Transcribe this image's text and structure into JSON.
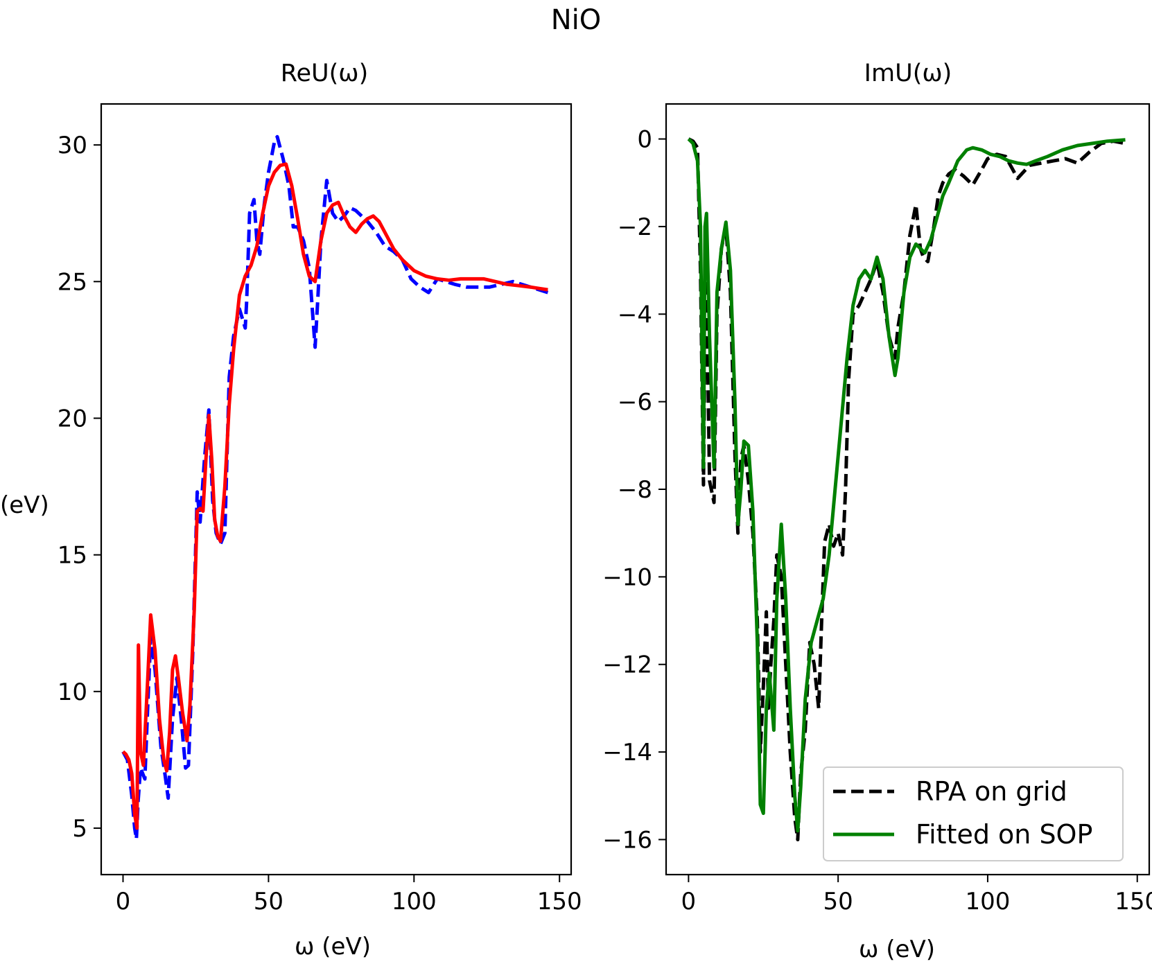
{
  "figure": {
    "title": "NiO"
  },
  "chart_data": [
    {
      "type": "line",
      "title": "ReU(ω)",
      "xlabel": "ω (eV)",
      "ylabel": "(eV)",
      "xlim": [
        -7.5,
        154
      ],
      "ylim": [
        3.3,
        31.5
      ],
      "xticks": [
        0,
        50,
        100,
        150
      ],
      "yticks": [
        5,
        10,
        15,
        20,
        25,
        30
      ],
      "xticklabels": [
        "0",
        "50",
        "100",
        "150"
      ],
      "yticklabels": [
        "5",
        "10",
        "15",
        "20",
        "25",
        "30"
      ],
      "grid": false,
      "series": [
        {
          "color": "#0000ff",
          "dash": "dashed",
          "x": [
            0,
            1.5,
            3,
            4,
            4.6,
            5.2,
            6,
            7.5,
            8.5,
            9.5,
            11,
            13,
            14.5,
            15.5,
            17,
            18.5,
            20,
            21.5,
            22.5,
            24,
            25.5,
            26.5,
            28,
            29.5,
            30.8,
            32,
            33.5,
            35,
            36.5,
            38,
            40,
            42,
            42.5,
            43.5,
            45,
            46,
            47,
            48.5,
            50,
            52,
            53,
            55,
            57,
            58.5,
            60,
            62,
            64,
            66,
            67,
            68,
            70,
            72,
            74,
            76,
            78,
            80,
            82,
            84,
            87,
            90,
            93,
            96,
            99,
            102,
            105,
            108,
            111,
            114,
            118,
            122,
            126,
            130,
            134,
            137,
            140,
            143,
            146
          ],
          "values": [
            7.8,
            7.5,
            6.2,
            5.0,
            4.6,
            6.0,
            7.2,
            6.8,
            9.5,
            12.0,
            10.8,
            8.0,
            6.9,
            6.1,
            9.0,
            10.5,
            9.0,
            7.2,
            7.3,
            11.5,
            17.3,
            16.2,
            18.5,
            20.3,
            17.0,
            15.8,
            15.4,
            15.8,
            21.5,
            23.0,
            24.0,
            23.3,
            24.3,
            27.5,
            28.0,
            26.5,
            26.0,
            27.8,
            29.0,
            30.1,
            30.3,
            29.5,
            28.5,
            27.0,
            27.0,
            26.5,
            25.5,
            22.6,
            24.5,
            26.5,
            28.7,
            27.5,
            27.2,
            27.4,
            27.7,
            27.6,
            27.4,
            27.2,
            26.8,
            26.3,
            26.1,
            25.8,
            25.1,
            24.8,
            24.6,
            25.1,
            25.0,
            24.9,
            24.8,
            24.8,
            24.8,
            24.9,
            25.0,
            24.9,
            24.8,
            24.7,
            24.6
          ]
        },
        {
          "color": "#ff0000",
          "dash": "solid",
          "x": [
            0,
            1,
            2,
            3,
            4,
            4.8,
            5.3,
            6,
            7,
            8.5,
            9.5,
            11,
            12.5,
            14,
            15,
            16,
            17,
            18,
            19,
            20.5,
            22,
            23,
            24.5,
            25.5,
            26.5,
            27.5,
            28.5,
            29.5,
            30.5,
            31.5,
            32.5,
            33.5,
            35,
            36.5,
            38,
            40,
            42,
            44,
            46,
            48,
            50,
            52,
            54,
            56,
            58,
            60,
            62,
            64,
            66,
            68,
            70,
            72,
            74,
            76,
            78,
            80,
            82,
            84,
            86,
            88,
            90,
            93,
            96,
            100,
            104,
            108,
            112,
            116,
            120,
            124,
            128,
            132,
            136,
            140,
            143,
            146
          ],
          "values": [
            7.8,
            7.7,
            7.5,
            7.0,
            5.5,
            5.0,
            11.7,
            7.8,
            7.3,
            10.5,
            12.8,
            11.5,
            9.0,
            7.5,
            7.1,
            8.5,
            10.8,
            11.3,
            10.5,
            9.2,
            8.2,
            9.5,
            13.0,
            16.6,
            16.7,
            16.6,
            18.5,
            20.1,
            18.5,
            16.3,
            15.7,
            15.5,
            17.5,
            20.5,
            22.5,
            24.5,
            25.2,
            25.6,
            26.3,
            27.5,
            28.5,
            29.0,
            29.25,
            29.3,
            28.5,
            27.3,
            26.0,
            25.2,
            25.0,
            26.5,
            27.5,
            27.8,
            27.9,
            27.4,
            27.0,
            26.8,
            27.1,
            27.3,
            27.4,
            27.2,
            26.8,
            26.2,
            25.8,
            25.4,
            25.2,
            25.1,
            25.05,
            25.1,
            25.1,
            25.1,
            25.0,
            24.9,
            24.85,
            24.8,
            24.75,
            24.7
          ]
        }
      ]
    },
    {
      "type": "line",
      "title": "ImU(ω)",
      "xlabel": "ω (eV)",
      "ylabel": "",
      "xlim": [
        -7.5,
        154
      ],
      "ylim": [
        -16.8,
        0.8
      ],
      "xticks": [
        0,
        50,
        100,
        150
      ],
      "yticks": [
        0,
        -2,
        -4,
        -6,
        -8,
        -10,
        -12,
        -14,
        -16
      ],
      "xticklabels": [
        "0",
        "50",
        "100",
        "150"
      ],
      "yticklabels": [
        "0",
        "−2",
        "−4",
        "−6",
        "−8",
        "−10",
        "−12",
        "−14",
        "−16"
      ],
      "grid": false,
      "legend": "lower-right",
      "series": [
        {
          "name": "RPA on grid",
          "color": "#000000",
          "dash": "dashed",
          "x": [
            0,
            1.5,
            3,
            4,
            5,
            5.5,
            6,
            7,
            8.5,
            9.5,
            11,
            12.5,
            14,
            15.5,
            16.5,
            17.5,
            18.5,
            20,
            21.5,
            23,
            24,
            25,
            26,
            26.7,
            27.5,
            28.5,
            29.5,
            31,
            32.5,
            34,
            35.5,
            36.5,
            37.5,
            39,
            40.5,
            42,
            43.5,
            44.5,
            45.5,
            47,
            48.5,
            50,
            51.5,
            52.5,
            53.5,
            55,
            57,
            59,
            61,
            63,
            65,
            67,
            69,
            70,
            72,
            74,
            76,
            77.5,
            78.5,
            80,
            82,
            83.5,
            85,
            87,
            89,
            92,
            95,
            98,
            100,
            103,
            106,
            110,
            114,
            118,
            122,
            126,
            130,
            134,
            138,
            142,
            146
          ],
          "values": [
            0.0,
            -0.05,
            -0.2,
            -3.0,
            -7.9,
            -4.5,
            -3.0,
            -7.8,
            -8.3,
            -4.0,
            -2.5,
            -2.0,
            -3.5,
            -7.2,
            -9.0,
            -7.3,
            -7.0,
            -7.8,
            -9.0,
            -11.0,
            -14.0,
            -12.5,
            -10.8,
            -13.0,
            -12.0,
            -11.0,
            -9.5,
            -10.0,
            -12.0,
            -14.0,
            -15.5,
            -16.0,
            -14.5,
            -13.5,
            -11.5,
            -12.0,
            -13.0,
            -11.0,
            -9.2,
            -8.8,
            -9.3,
            -9.0,
            -9.5,
            -8.0,
            -5.5,
            -4.0,
            -3.8,
            -3.5,
            -3.2,
            -2.8,
            -3.5,
            -4.5,
            -5.0,
            -4.3,
            -3.5,
            -2.2,
            -1.5,
            -2.5,
            -2.7,
            -2.8,
            -2.0,
            -1.3,
            -1.0,
            -0.8,
            -0.7,
            -0.85,
            -1.05,
            -0.7,
            -0.45,
            -0.35,
            -0.4,
            -0.9,
            -0.6,
            -0.55,
            -0.5,
            -0.45,
            -0.55,
            -0.3,
            -0.1,
            -0.05,
            -0.1
          ]
        },
        {
          "name": "Fitted on SOP",
          "color": "#008000",
          "dash": "solid",
          "x": [
            0,
            1.5,
            3,
            4,
            5,
            5.5,
            6,
            7,
            8.5,
            9.5,
            11,
            12.5,
            14,
            15.5,
            16.5,
            17.5,
            18.5,
            20,
            21.5,
            23,
            24,
            25,
            26,
            27,
            28.5,
            29.5,
            31,
            32.5,
            34,
            35.5,
            36.5,
            37.5,
            39,
            41,
            43,
            45,
            47,
            49,
            51,
            53,
            55,
            57,
            59,
            61,
            63,
            65,
            67,
            69,
            70,
            72,
            74,
            76,
            77.5,
            79,
            81,
            83,
            85,
            87,
            90,
            93,
            95,
            98,
            101,
            104,
            107,
            110,
            113,
            116,
            120,
            125,
            130,
            135,
            140,
            146
          ],
          "values": [
            0.0,
            -0.1,
            -0.5,
            -2.0,
            -7.5,
            -2.0,
            -1.7,
            -4.5,
            -7.5,
            -3.5,
            -2.5,
            -1.9,
            -3.0,
            -6.0,
            -8.8,
            -8.0,
            -6.9,
            -7.0,
            -8.5,
            -11.5,
            -15.2,
            -15.4,
            -13.0,
            -12.2,
            -13.5,
            -10.5,
            -8.8,
            -10.5,
            -13.0,
            -15.0,
            -15.8,
            -14.8,
            -12.8,
            -11.5,
            -11.0,
            -10.5,
            -9.5,
            -8.0,
            -6.5,
            -5.0,
            -3.8,
            -3.2,
            -3.0,
            -3.2,
            -2.7,
            -3.2,
            -4.5,
            -5.4,
            -5.0,
            -3.5,
            -2.7,
            -2.4,
            -2.5,
            -2.6,
            -2.3,
            -1.8,
            -1.3,
            -1.0,
            -0.5,
            -0.25,
            -0.2,
            -0.25,
            -0.35,
            -0.4,
            -0.5,
            -0.55,
            -0.58,
            -0.5,
            -0.4,
            -0.25,
            -0.15,
            -0.1,
            -0.05,
            -0.02
          ]
        }
      ]
    }
  ]
}
